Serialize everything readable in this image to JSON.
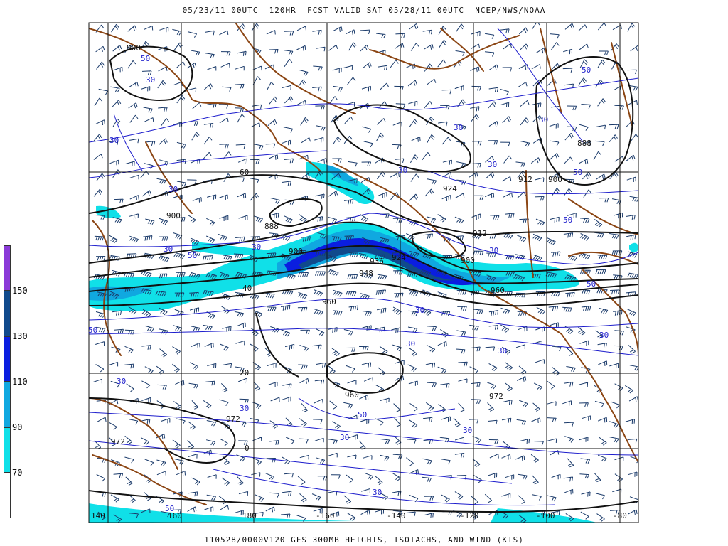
{
  "header": {
    "title": "05/23/11 00UTC  120HR  FCST VALID SAT 05/28/11 00UTC  NCEP/NWS/NOAA"
  },
  "footer": {
    "title": "110528/0000V120 GFS 300MB HEIGHTS, ISOTACHS, AND WIND (KTS)"
  },
  "colors": {
    "band_70_90": "#10e0e8",
    "band_90_110": "#10a8e0",
    "band_110_130": "#0a1ee0",
    "band_130_150": "#104a8c",
    "band_150_plus": "#8a3ad8",
    "coastline": "#8b4513",
    "height_contour": "#111111",
    "isotach_contour": "#1d1dcc",
    "wind_barbs": "#1a3a6a"
  },
  "colorbar": {
    "labels": [
      "150",
      "130",
      "110",
      "90",
      "70"
    ]
  },
  "grid": {
    "lat_labels": [
      "60",
      "40",
      "20",
      "0"
    ],
    "lon_labels": [
      "140",
      "160",
      "180",
      "-160",
      "-140",
      "-120",
      "-100",
      "-80"
    ]
  },
  "height_labels": [
    "900",
    "888",
    "900",
    "900",
    "912",
    "924",
    "900",
    "888",
    "936",
    "924",
    "948",
    "960",
    "900",
    "912",
    "960",
    "960",
    "972",
    "972",
    "972"
  ],
  "isotach_labels": [
    "50",
    "30",
    "30",
    "30",
    "30",
    "50",
    "30",
    "50",
    "30",
    "30",
    "30",
    "30",
    "50",
    "50",
    "30",
    "30",
    "30",
    "30",
    "30",
    "30",
    "30",
    "50",
    "30",
    "30",
    "50",
    "30",
    "50",
    "50"
  ]
}
